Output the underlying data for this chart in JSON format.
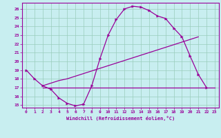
{
  "xlabel": "Windchill (Refroidissement éolien,°C)",
  "background_color": "#c8eef0",
  "grid_color": "#99ccbb",
  "line_color": "#990099",
  "xlim": [
    -0.5,
    23.5
  ],
  "ylim": [
    14.7,
    26.7
  ],
  "xticks": [
    0,
    1,
    2,
    3,
    4,
    5,
    6,
    7,
    8,
    9,
    10,
    11,
    12,
    13,
    14,
    15,
    16,
    17,
    18,
    19,
    20,
    21,
    22,
    23
  ],
  "yticks": [
    15,
    16,
    17,
    18,
    19,
    20,
    21,
    22,
    23,
    24,
    25,
    26
  ],
  "line1_x": [
    0,
    1,
    2,
    3,
    4,
    5,
    6,
    7,
    8,
    9,
    10,
    11,
    12,
    13,
    14,
    15,
    16,
    17,
    18,
    19,
    20,
    21,
    22
  ],
  "line1_y": [
    19.0,
    18.0,
    17.2,
    16.8,
    15.8,
    15.2,
    14.9,
    15.1,
    17.2,
    20.3,
    23.0,
    24.8,
    26.0,
    26.3,
    26.2,
    25.8,
    25.2,
    24.9,
    23.8,
    22.8,
    20.6,
    18.5,
    17.0
  ],
  "line2_x": [
    2,
    23
  ],
  "line2_y": [
    17.0,
    17.0
  ],
  "line3_x": [
    2,
    3,
    4,
    5,
    6,
    7,
    8,
    9,
    10,
    11,
    12,
    13,
    14,
    15,
    16,
    17,
    18,
    19,
    20,
    21
  ],
  "line3_y": [
    17.2,
    17.5,
    17.8,
    18.0,
    18.3,
    18.6,
    18.9,
    19.2,
    19.5,
    19.8,
    20.1,
    20.4,
    20.7,
    21.0,
    21.3,
    21.6,
    21.9,
    22.2,
    22.5,
    22.8
  ]
}
